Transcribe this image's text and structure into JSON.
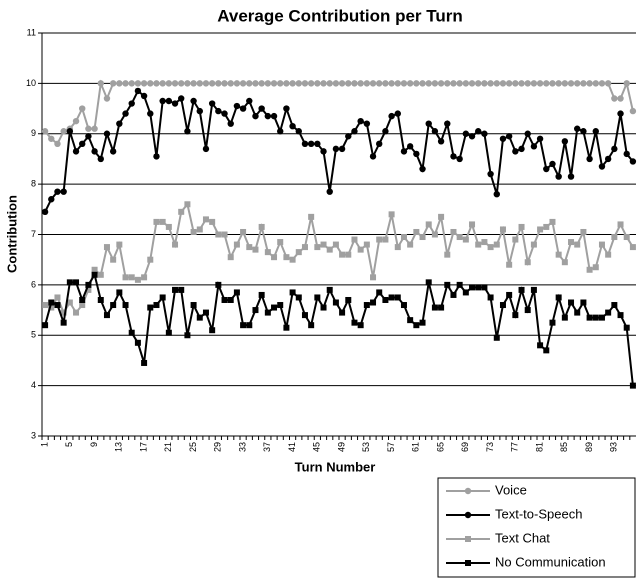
{
  "chart_data": {
    "type": "line",
    "title": "Average Contribution per Turn",
    "x_label": "Turn Number",
    "y_label": "Contribution",
    "categories": [
      1,
      null,
      null,
      null,
      5,
      null,
      null,
      null,
      9,
      null,
      null,
      null,
      13,
      null,
      null,
      null,
      17,
      null,
      null,
      null,
      21,
      null,
      null,
      null,
      25,
      null,
      null,
      null,
      29,
      null,
      null,
      null,
      33,
      null,
      null,
      null,
      37,
      null,
      null,
      null,
      41,
      null,
      null,
      null,
      45,
      null,
      null,
      null,
      49,
      null,
      null,
      null,
      53,
      null,
      null,
      null,
      57,
      null,
      null,
      null,
      61,
      null,
      null,
      null,
      65,
      null,
      null,
      null,
      69,
      null,
      null,
      null,
      73,
      null,
      null,
      null,
      77,
      null,
      null,
      null,
      81,
      null,
      null,
      null,
      85,
      null,
      null,
      null,
      89,
      null,
      null,
      null,
      93,
      null,
      null,
      null
    ],
    "ylim": [
      3,
      11
    ],
    "yticks": [
      3,
      4,
      5,
      6,
      7,
      8,
      9,
      10,
      11
    ],
    "grid": true,
    "legend": "bottom-right",
    "series": [
      {
        "name": "Voice",
        "color": "#a0a0a0",
        "marker": "circle",
        "values": [
          9.05,
          8.9,
          8.8,
          9.05,
          9.1,
          9.25,
          9.5,
          9.1,
          9.1,
          10,
          9.7,
          10,
          10,
          10,
          10,
          10,
          10,
          10,
          10,
          10,
          10,
          10,
          10,
          10,
          10,
          10,
          10,
          10,
          10,
          10,
          10,
          10,
          10,
          10,
          10,
          10,
          10,
          10,
          10,
          10,
          10,
          10,
          10,
          10,
          10,
          10,
          10,
          10,
          10,
          10,
          10,
          10,
          10,
          10,
          10,
          10,
          10,
          10,
          10,
          10,
          10,
          10,
          10,
          10,
          10,
          10,
          10,
          10,
          10,
          10,
          10,
          10,
          10,
          10,
          10,
          10,
          10,
          10,
          10,
          10,
          10,
          10,
          10,
          10,
          10,
          10,
          10,
          10,
          10,
          10,
          10,
          10,
          9.7,
          9.7,
          10,
          9.45
        ]
      },
      {
        "name": "Text-to-Speech",
        "color": "#000000",
        "marker": "circle",
        "values": [
          7.45,
          7.7,
          7.85,
          7.85,
          9.05,
          8.65,
          8.8,
          8.95,
          8.65,
          8.5,
          9.0,
          8.65,
          9.2,
          9.4,
          9.6,
          9.85,
          9.75,
          9.4,
          8.55,
          9.65,
          9.65,
          9.6,
          9.7,
          9.05,
          9.65,
          9.45,
          8.7,
          9.6,
          9.45,
          9.4,
          9.2,
          9.55,
          9.5,
          9.65,
          9.35,
          9.5,
          9.35,
          9.35,
          9.05,
          9.5,
          9.15,
          9.05,
          8.8,
          8.8,
          8.8,
          8.65,
          7.85,
          8.7,
          8.7,
          8.95,
          9.05,
          9.25,
          9.2,
          8.55,
          8.8,
          9.05,
          9.35,
          9.4,
          8.65,
          8.75,
          8.6,
          8.3,
          9.2,
          9.05,
          8.85,
          9.2,
          8.55,
          8.5,
          9.0,
          8.95,
          9.05,
          9.0,
          8.2,
          7.8,
          8.9,
          8.95,
          8.65,
          8.7,
          9.0,
          8.75,
          8.9,
          8.3,
          8.4,
          8.15,
          8.85,
          8.15,
          9.1,
          9.05,
          8.5,
          9.05,
          8.35,
          8.5,
          8.7,
          9.4,
          8.6,
          8.45
        ]
      },
      {
        "name": "Text Chat",
        "color": "#a0a0a0",
        "marker": "square",
        "values": [
          5.6,
          5.55,
          5.75,
          5.45,
          5.65,
          5.45,
          5.6,
          5.9,
          6.3,
          6.2,
          6.75,
          6.5,
          6.8,
          6.15,
          6.15,
          6.1,
          6.15,
          6.5,
          7.25,
          7.25,
          7.15,
          6.8,
          7.45,
          7.6,
          7.05,
          7.1,
          7.3,
          7.25,
          7.0,
          7.0,
          6.55,
          6.8,
          7.05,
          6.75,
          6.7,
          7.15,
          6.65,
          6.55,
          6.85,
          6.55,
          6.5,
          6.65,
          6.75,
          7.35,
          6.75,
          6.8,
          6.7,
          6.8,
          6.6,
          6.6,
          6.9,
          6.7,
          6.8,
          6.15,
          6.9,
          6.9,
          7.4,
          6.75,
          6.95,
          6.8,
          7.05,
          6.95,
          7.2,
          7.0,
          7.35,
          6.6,
          7.05,
          6.95,
          6.9,
          7.2,
          6.8,
          6.85,
          6.75,
          6.8,
          7.1,
          6.4,
          6.9,
          7.15,
          6.45,
          6.8,
          7.1,
          7.15,
          7.25,
          6.6,
          6.45,
          6.85,
          6.8,
          7.05,
          6.3,
          6.35,
          6.8,
          6.6,
          6.95,
          7.2,
          6.95,
          6.75
        ]
      },
      {
        "name": "No Communication",
        "color": "#000000",
        "marker": "square",
        "values": [
          5.2,
          5.65,
          5.6,
          5.25,
          6.05,
          6.05,
          5.7,
          6.0,
          6.2,
          5.7,
          5.4,
          5.6,
          5.85,
          5.6,
          5.05,
          4.85,
          4.45,
          5.55,
          5.6,
          5.75,
          5.05,
          5.9,
          5.9,
          5.0,
          5.6,
          5.35,
          5.45,
          5.1,
          6.0,
          5.7,
          5.7,
          5.85,
          5.2,
          5.2,
          5.5,
          5.8,
          5.45,
          5.55,
          5.6,
          5.15,
          5.85,
          5.75,
          5.4,
          5.2,
          5.75,
          5.55,
          5.9,
          5.65,
          5.45,
          5.7,
          5.25,
          5.2,
          5.6,
          5.65,
          5.85,
          5.7,
          5.75,
          5.75,
          5.6,
          5.3,
          5.2,
          5.25,
          6.05,
          5.55,
          5.55,
          6.0,
          5.8,
          6.0,
          5.85,
          5.95,
          5.95,
          5.95,
          5.75,
          4.95,
          5.6,
          5.8,
          5.4,
          5.9,
          5.5,
          5.9,
          4.8,
          4.7,
          5.25,
          5.75,
          5.35,
          5.65,
          5.45,
          5.65,
          5.35,
          5.35,
          5.35,
          5.45,
          5.6,
          5.4,
          5.15,
          4.0
        ]
      }
    ]
  }
}
